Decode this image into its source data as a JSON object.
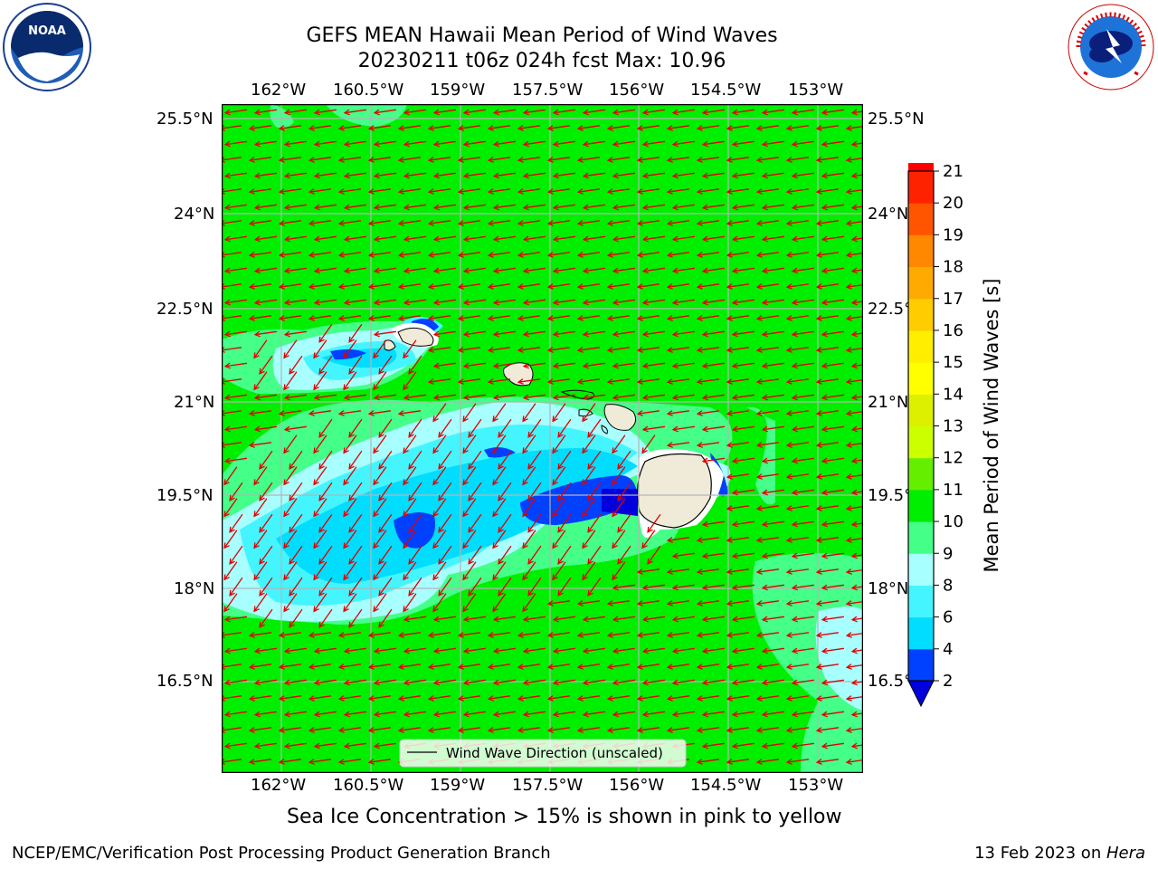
{
  "title": {
    "line1": "GEFS MEAN Hawaii Mean Period of Wind Waves",
    "line2": "20230211 t06z 024h fcst   Max: 10.96"
  },
  "logos": {
    "noaa": {
      "text": "NOAA",
      "ring_text": "NATIONAL OCEANIC AND ATMOSPHERIC ADMINISTRATION · U.S. DEPARTMENT OF COMMERCE"
    },
    "nws": {
      "ring_text": "NATIONAL WEATHER SERVICE"
    }
  },
  "map": {
    "lon_labels": [
      "162°W",
      "160.5°W",
      "159°W",
      "157.5°W",
      "156°W",
      "154.5°W",
      "153°W"
    ],
    "lat_labels_left": [
      "25.5°N",
      "24°N",
      "22.5°N",
      "21°N",
      "19.5°N",
      "18°N",
      "16.5°N"
    ],
    "lat_labels_right": [
      "25.5°N",
      "24°N",
      "22.5°N",
      "21°N",
      "19.5°N",
      "18°N",
      "16.5°N"
    ],
    "legend_label": "Wind Wave Direction (unscaled)",
    "colors": {
      "background": "#00ee00",
      "land": "#efebd8",
      "arrow": "#e00000"
    }
  },
  "colorbar": {
    "label": "Mean Period of Wind Waves [s]",
    "ticks": [
      "2",
      "4",
      "6",
      "8",
      "9",
      "10",
      "11",
      "12",
      "13",
      "14",
      "15",
      "16",
      "17",
      "18",
      "19",
      "20",
      "21"
    ],
    "colors": [
      "#0040ff",
      "#00ddff",
      "#44f5ff",
      "#a8ffff",
      "#44ff88",
      "#00ee00",
      "#66ee00",
      "#ccff00",
      "#ddf000",
      "#ffff00",
      "#ffee00",
      "#ffcc00",
      "#ffaa00",
      "#ff8800",
      "#ff5500",
      "#ff2200",
      "#ff0000"
    ],
    "extend_color": "#0000dd"
  },
  "caption": "Sea Ice Concentration > 15% is shown in pink to yellow",
  "footer": {
    "left": "NCEP/EMC/Verification Post Processing Product Generation Branch",
    "date": "13 Feb 2023 on ",
    "machine": "Hera"
  }
}
